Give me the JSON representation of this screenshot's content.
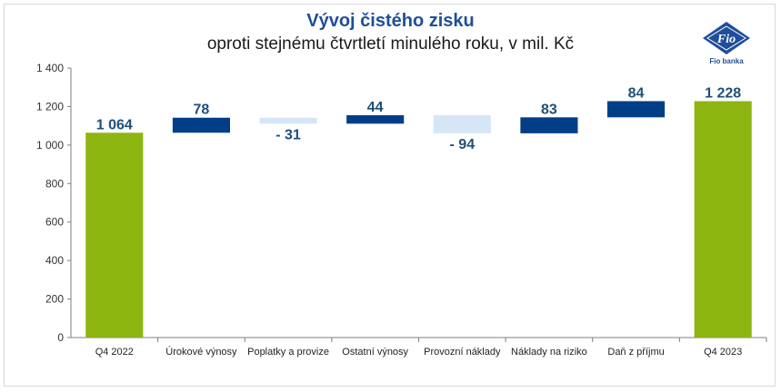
{
  "header": {
    "title": "Vývoj čistého zisku",
    "subtitle": "oproti stejnému čtvrtletí minulého roku, v mil. Kč"
  },
  "logo": {
    "mark": "Fio",
    "text": "Fio banka",
    "color": "#1f4e9a"
  },
  "colors": {
    "total": "#8db510",
    "increase": "#003f87",
    "decrease": "#d6e6f7",
    "label": "#1f4e79"
  },
  "chart_data": {
    "type": "bar",
    "subtype": "waterfall",
    "categories": [
      "Q4 2022",
      "Úrokové výnosy",
      "Poplatky a provize",
      "Ostatní výnosy",
      "Provozní náklady",
      "Náklady na riziko",
      "Daň z příjmu",
      "Q4 2023"
    ],
    "values": [
      1064,
      78,
      -31,
      44,
      -94,
      83,
      84,
      1228
    ],
    "kinds": [
      "total",
      "increase",
      "decrease",
      "increase",
      "decrease",
      "increase",
      "increase",
      "total"
    ],
    "data_labels": [
      "1 064",
      "78",
      "- 31",
      "44",
      "- 94",
      "83",
      "84",
      "1 228"
    ],
    "yticks": [
      "0",
      "200",
      "400",
      "600",
      "800",
      "1 000",
      "1 200",
      "1 400"
    ],
    "ylim": [
      0,
      1400
    ],
    "grid": false,
    "legend": false
  }
}
